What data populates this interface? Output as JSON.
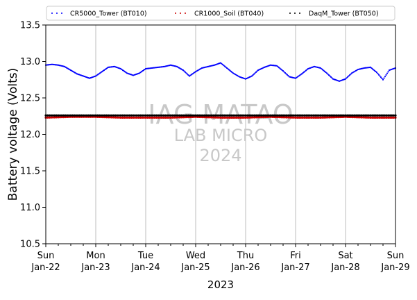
{
  "chart_data": {
    "type": "scatter",
    "title": "",
    "xlabel": "2023",
    "ylabel": "Battery voltage (Volts)",
    "xlim": [
      "2023-01-22",
      "2023-01-29"
    ],
    "ylim": [
      10.5,
      13.5
    ],
    "grid": "x-major only",
    "legend_position": "top, outside plot, 3 columns",
    "x_ticks": [
      {
        "day": "Sun",
        "date": "Jan-22"
      },
      {
        "day": "Mon",
        "date": "Jan-23"
      },
      {
        "day": "Tue",
        "date": "Jan-24"
      },
      {
        "day": "Wed",
        "date": "Jan-25"
      },
      {
        "day": "Thu",
        "date": "Jan-26"
      },
      {
        "day": "Fri",
        "date": "Jan-27"
      },
      {
        "day": "Sat",
        "date": "Jan-28"
      },
      {
        "day": "Sun",
        "date": "Jan-29"
      }
    ],
    "y_ticks": [
      "10.5",
      "11.0",
      "11.5",
      "12.0",
      "12.5",
      "13.0",
      "13.5"
    ],
    "watermark": [
      "IAG MATAO",
      "LAB MICRO",
      "2024"
    ],
    "series": [
      {
        "name": "CR5000_Tower (BT010)",
        "color": "#0000ff",
        "x": [
          "2023-01-22 00:00",
          "2023-01-22 03:00",
          "2023-01-22 06:00",
          "2023-01-22 09:00",
          "2023-01-22 12:00",
          "2023-01-22 15:00",
          "2023-01-22 18:00",
          "2023-01-22 21:00",
          "2023-01-23 00:00",
          "2023-01-23 03:00",
          "2023-01-23 06:00",
          "2023-01-23 09:00",
          "2023-01-23 12:00",
          "2023-01-23 15:00",
          "2023-01-23 18:00",
          "2023-01-23 21:00",
          "2023-01-24 00:00",
          "2023-01-24 03:00",
          "2023-01-24 06:00",
          "2023-01-24 09:00",
          "2023-01-24 12:00",
          "2023-01-24 15:00",
          "2023-01-24 18:00",
          "2023-01-24 21:00",
          "2023-01-25 00:00",
          "2023-01-25 03:00",
          "2023-01-25 06:00",
          "2023-01-25 09:00",
          "2023-01-25 12:00",
          "2023-01-25 15:00",
          "2023-01-25 18:00",
          "2023-01-25 21:00",
          "2023-01-26 00:00",
          "2023-01-26 03:00",
          "2023-01-26 06:00",
          "2023-01-26 09:00",
          "2023-01-26 12:00",
          "2023-01-26 15:00",
          "2023-01-26 18:00",
          "2023-01-26 21:00",
          "2023-01-27 00:00",
          "2023-01-27 03:00",
          "2023-01-27 06:00",
          "2023-01-27 09:00",
          "2023-01-27 12:00",
          "2023-01-27 15:00",
          "2023-01-27 18:00",
          "2023-01-27 21:00",
          "2023-01-28 00:00",
          "2023-01-28 03:00",
          "2023-01-28 06:00",
          "2023-01-28 09:00",
          "2023-01-28 12:00",
          "2023-01-28 15:00",
          "2023-01-28 18:00",
          "2023-01-28 21:00",
          "2023-01-29 00:00"
        ],
        "y": [
          12.95,
          12.96,
          12.95,
          12.93,
          12.88,
          12.83,
          12.8,
          12.77,
          12.8,
          12.86,
          12.92,
          12.93,
          12.9,
          12.84,
          12.81,
          12.84,
          12.9,
          12.91,
          12.92,
          12.93,
          12.95,
          12.93,
          12.88,
          12.8,
          12.86,
          12.91,
          12.93,
          12.95,
          12.98,
          12.91,
          12.84,
          12.79,
          12.76,
          12.8,
          12.88,
          12.92,
          12.95,
          12.94,
          12.87,
          12.79,
          12.77,
          12.83,
          12.9,
          12.93,
          12.91,
          12.84,
          12.76,
          12.73,
          12.76,
          12.84,
          12.89,
          12.91,
          12.92,
          12.85,
          12.75,
          12.88,
          12.91
        ]
      },
      {
        "name": "CR1000_Soil (BT040)",
        "color": "#cc0000",
        "x": [
          "2023-01-22",
          "2023-01-22 12:00",
          "2023-01-23",
          "2023-01-23 12:00",
          "2023-01-24",
          "2023-01-24 12:00",
          "2023-01-25",
          "2023-01-25 12:00",
          "2023-01-26",
          "2023-01-26 12:00",
          "2023-01-27",
          "2023-01-27 12:00",
          "2023-01-28",
          "2023-01-28 12:00",
          "2023-01-29"
        ],
        "y": [
          12.23,
          12.24,
          12.24,
          12.23,
          12.23,
          12.23,
          12.24,
          12.23,
          12.23,
          12.24,
          12.23,
          12.23,
          12.24,
          12.23,
          12.23
        ]
      },
      {
        "name": "DaqM_Tower (BT050)",
        "color": "#000000",
        "x": [
          "2023-01-22",
          "2023-01-22 12:00",
          "2023-01-23",
          "2023-01-23 12:00",
          "2023-01-24",
          "2023-01-24 12:00",
          "2023-01-25",
          "2023-01-25 12:00",
          "2023-01-26",
          "2023-01-26 12:00",
          "2023-01-27",
          "2023-01-27 12:00",
          "2023-01-28",
          "2023-01-28 12:00",
          "2023-01-29"
        ],
        "y": [
          12.26,
          12.26,
          12.26,
          12.26,
          12.26,
          12.26,
          12.26,
          12.26,
          12.26,
          12.26,
          12.26,
          12.26,
          12.26,
          12.26,
          12.26
        ]
      }
    ]
  }
}
